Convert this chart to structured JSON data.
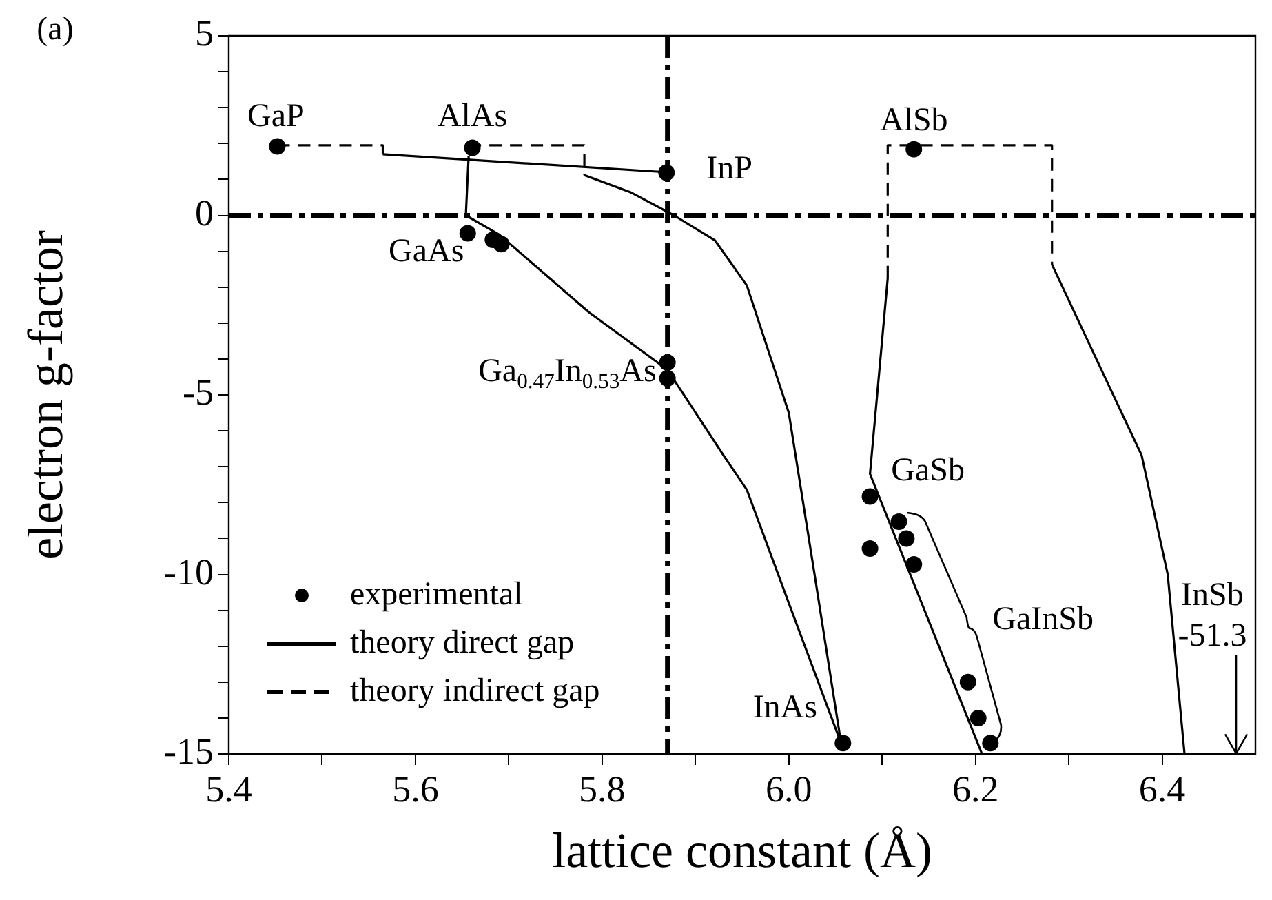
{
  "chart_data": {
    "type": "scatter",
    "xlabel": "lattice constant (Å)",
    "ylabel": "electron g-factor",
    "xlim": [
      5.4,
      6.5
    ],
    "ylim": [
      -15,
      5
    ],
    "xticks": [
      5.4,
      {
        "value": 5.5,
        "label": null
      },
      5.6,
      {
        "value": 5.7,
        "label": null
      },
      5.8,
      {
        "value": 5.9,
        "label": null
      },
      {
        "value": 6,
        "label": "6.0"
      },
      {
        "value": 6.1,
        "label": null
      },
      6.2,
      {
        "value": 6.3,
        "label": null
      },
      6.4
    ],
    "yticks": [
      -15,
      {
        "value": -14,
        "label": null
      },
      {
        "value": -13,
        "label": null
      },
      {
        "value": -12,
        "label": null
      },
      {
        "value": -11,
        "label": null
      },
      -10,
      {
        "value": -9,
        "label": null
      },
      {
        "value": -8,
        "label": null
      },
      {
        "value": -7,
        "label": null
      },
      {
        "value": -6,
        "label": null
      },
      -5,
      {
        "value": -4,
        "label": null
      },
      {
        "value": -3,
        "label": null
      },
      {
        "value": -2,
        "label": null
      },
      {
        "value": -1,
        "label": null
      },
      0,
      {
        "value": 1,
        "label": null
      },
      {
        "value": 2,
        "label": null
      },
      {
        "value": 3,
        "label": null
      },
      {
        "value": 4,
        "label": null
      },
      5
    ],
    "grid": false,
    "legend": "bottom left",
    "series": [
      {
        "name": "experimental",
        "type": "scatter",
        "marker": "circle",
        "color": "#000000",
        "x": [
          5.452,
          5.661,
          5.869,
          5.656,
          5.683,
          5.692,
          5.87,
          5.87,
          6.134,
          6.087,
          6.087,
          6.118,
          6.126,
          6.134,
          6.192,
          6.203,
          6.216,
          6.058
        ],
        "values": [
          1.92,
          1.88,
          1.19,
          -0.5,
          -0.68,
          -0.8,
          -4.1,
          -4.54,
          1.84,
          -7.83,
          -9.28,
          -8.53,
          -9.0,
          -9.72,
          -13.0,
          -14.0,
          -14.7,
          -14.7
        ]
      },
      {
        "name": "theory direct gap",
        "type": "line",
        "marker": "none",
        "line_style": "solid",
        "color": "#000000",
        "x": [
          5.565,
          5.87,
          null,
          5.657,
          5.654,
          5.69,
          5.786,
          5.87,
          5.93,
          5.955,
          6.0,
          6.056,
          null,
          5.781,
          5.83,
          5.877,
          5.921,
          5.955,
          6.0,
          6.027,
          6.056,
          null,
          6.106,
          6.087,
          6.207,
          null,
          6.282,
          6.334,
          6.378,
          6.406,
          6.424
        ],
        "values": [
          1.7,
          1.2,
          null,
          1.65,
          0,
          -0.54,
          -2.7,
          -4.3,
          -6.68,
          -7.64,
          -10.8,
          -14.7,
          null,
          1.12,
          0.65,
          0,
          -0.7,
          -1.95,
          -5.5,
          -9.9,
          -14.7,
          null,
          -1.75,
          -7.2,
          -15,
          null,
          -1.37,
          -4.25,
          -6.68,
          -10,
          -15
        ]
      },
      {
        "name": "theory indirect gap",
        "type": "line",
        "marker": "none",
        "line_style": "dashed",
        "color": "#000000",
        "x": [
          5.452,
          5.565,
          5.565,
          null,
          5.657,
          5.781,
          5.781,
          null,
          6.106,
          6.106,
          6.282,
          6.282
        ],
        "values": [
          1.95,
          1.95,
          1.7,
          null,
          1.95,
          1.95,
          1.12,
          null,
          -1.75,
          1.95,
          1.95,
          -1.37
        ]
      }
    ],
    "ref_lines": [
      {
        "axis": "x",
        "value": 5.87,
        "line_style": "dashdot",
        "color": "#000000"
      },
      {
        "axis": "y",
        "value": 0,
        "line_style": "dashdot",
        "color": "#000000"
      }
    ],
    "annotations": [
      "(a)",
      {
        "text": "GaP",
        "x": 5.452,
        "y": 1.92
      },
      {
        "text": "AlAs",
        "x": 5.661,
        "y": 1.88
      },
      {
        "text": "InP",
        "x": 5.869,
        "y": 1.19
      },
      {
        "text": "GaAs",
        "x": 5.656,
        "y": -0.5
      },
      {
        "text": "Ga$_{0.47}$In$_{0.53}$As",
        "x": 5.87,
        "y": -4.1
      },
      {
        "text": "AlSb",
        "x": 6.134,
        "y": 1.84
      },
      {
        "text": "GaSb",
        "x": 6.087,
        "y": -7.83
      },
      "GaInSb",
      {
        "text": "InAs",
        "x": 6.058,
        "y": -14.7
      },
      "InSb",
      "-51.3"
    ]
  }
}
